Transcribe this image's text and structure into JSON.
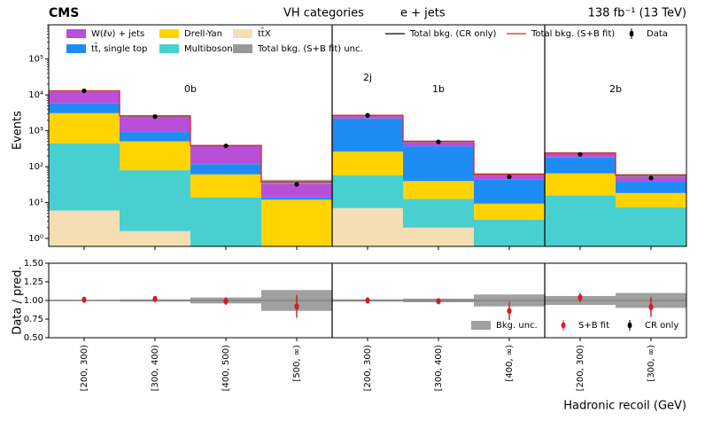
{
  "chart_data": [
    {
      "type": "stacked-hist",
      "title": "CMS",
      "subtitle": "VH categories",
      "channel": "e + jets",
      "luminosity": "138 fb⁻¹ (13 TeV)",
      "y_label": "Events",
      "log_scale": true,
      "group_labels": [
        "0b",
        "1b",
        "2b",
        "2j"
      ],
      "categories": [
        "[200, 300)",
        "[300, 400)",
        "[400, 500)",
        "[500, ∞)",
        "[200, 300)",
        "[300, 400)",
        "[400, ∞)",
        "[200, 300)",
        "[300, ∞)"
      ],
      "ylim": [
        0.6,
        900000
      ],
      "yticks": [
        {
          "value": 1,
          "label": "10⁰"
        },
        {
          "value": 10,
          "label": "10¹"
        },
        {
          "value": 100,
          "label": "10²"
        },
        {
          "value": 1000,
          "label": "10³"
        },
        {
          "value": 10000,
          "label": "10⁴"
        },
        {
          "value": 100000,
          "label": "10⁵"
        }
      ],
      "series": [
        {
          "name": "tt̄X",
          "color": "#f5deb3",
          "values": [
            6,
            1.6,
            0,
            0,
            7,
            2,
            0,
            0,
            0
          ]
        },
        {
          "name": "Multiboson",
          "color": "#48cfcf",
          "values": [
            444,
            78,
            14,
            0,
            51,
            10.7,
            3.3,
            16,
            7.4
          ]
        },
        {
          "name": "Drell-Yan",
          "color": "#ffd400",
          "values": [
            2650,
            430,
            47,
            12,
            207,
            27,
            6,
            49,
            11
          ]
        },
        {
          "name": "tt̄, single top",
          "color": "#1e8cf5",
          "values": [
            2700,
            410,
            57,
            2,
            1935,
            330,
            35,
            115,
            21
          ]
        },
        {
          "name": "W(ℓν) + jets",
          "color": "#b94fd9",
          "values": [
            7200,
            1700,
            272,
            24,
            500,
            140,
            17,
            60,
            18
          ]
        }
      ],
      "unc_name": "Total bkg. (S+B fit) unc.",
      "total_lines": [
        {
          "name": "Total bkg. (CR only)",
          "color": "#000000"
        },
        {
          "name": "Total bkg. (S+B fit)",
          "color": "#d62728"
        }
      ],
      "data": {
        "name": "Data",
        "color": "#000000",
        "values": [
          13000,
          2500,
          380,
          32,
          2700,
          490,
          52,
          220,
          48
        ]
      }
    },
    {
      "type": "ratio",
      "y_label": "Data / pred.",
      "x_label": "Hadronic recoil (GeV)",
      "ylim": [
        0.5,
        1.5
      ],
      "yticks": [
        {
          "value": 0.5,
          "label": "0.50"
        },
        {
          "value": 0.75,
          "label": "0.75"
        },
        {
          "value": 1,
          "label": "1.00"
        },
        {
          "value": 1.25,
          "label": "1.25"
        },
        {
          "value": 1.5,
          "label": "1.50"
        }
      ],
      "band": {
        "name": "Bkg. unc.",
        "color": "#a0a0a0",
        "values": [
          0.01,
          0.015,
          0.04,
          0.14,
          0.015,
          0.025,
          0.08,
          0.06,
          0.1
        ]
      },
      "series": [
        {
          "name": "CR only",
          "color": "#000000",
          "values": [
            1.01,
            1.02,
            0.99,
            0.92,
            1.0,
            0.99,
            0.86,
            1.04,
            0.91
          ],
          "errors": [
            0.01,
            0.02,
            0.05,
            0.15,
            0.02,
            0.04,
            0.12,
            0.06,
            0.13
          ]
        },
        {
          "name": "S+B fit",
          "color": "#e8141e",
          "values": [
            1.01,
            1.02,
            0.99,
            0.92,
            1.0,
            0.99,
            0.86,
            1.04,
            0.91
          ],
          "errors": [
            0.01,
            0.02,
            0.05,
            0.15,
            0.02,
            0.04,
            0.12,
            0.06,
            0.13
          ]
        }
      ]
    }
  ]
}
